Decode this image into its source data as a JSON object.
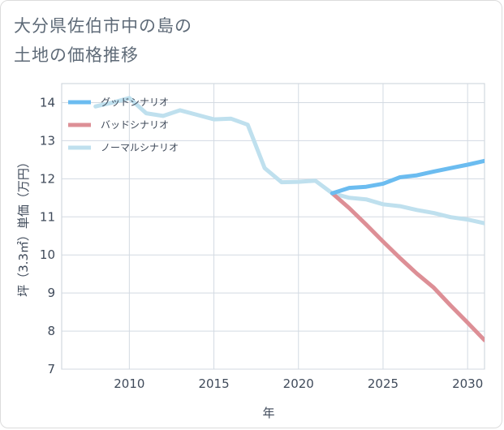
{
  "title": {
    "line1": "大分県佐伯市中の島の",
    "line2": "土地の価格推移"
  },
  "chart_data": {
    "type": "line",
    "xlabel": "年",
    "ylabel": "坪（3.3㎡）単価（万円）",
    "xlim": [
      2006,
      2031
    ],
    "ylim": [
      7,
      14.5
    ],
    "x_ticks": [
      "2010",
      "2015",
      "2020",
      "2025",
      "2030"
    ],
    "y_ticks": [
      "7",
      "8",
      "9",
      "10",
      "11",
      "12",
      "13",
      "14"
    ],
    "grid": true,
    "legend_position": "top-left",
    "series": [
      {
        "name": "グッドシナリオ",
        "color": "#6bbcf0",
        "x": [
          2022,
          2023,
          2024,
          2025,
          2026,
          2027,
          2028,
          2029,
          2030,
          2031
        ],
        "y": [
          11.62,
          11.76,
          11.79,
          11.87,
          12.04,
          12.09,
          12.19,
          12.28,
          12.37,
          12.47
        ]
      },
      {
        "name": "バッドシナリオ",
        "color": "#dd8f96",
        "x": [
          2022,
          2023,
          2024,
          2025,
          2026,
          2027,
          2028,
          2029,
          2030,
          2031
        ],
        "y": [
          11.62,
          11.23,
          10.8,
          10.35,
          9.92,
          9.51,
          9.14,
          8.67,
          8.22,
          7.76
        ]
      },
      {
        "name": "ノーマルシナリオ",
        "color": "#bfe0ee",
        "x": [
          2008,
          2009,
          2010,
          2011,
          2012,
          2013,
          2014,
          2015,
          2016,
          2017,
          2018,
          2019,
          2020,
          2021,
          2022,
          2023,
          2024,
          2025,
          2026,
          2027,
          2028,
          2029,
          2030,
          2031
        ],
        "y": [
          13.9,
          14.0,
          14.12,
          13.72,
          13.65,
          13.8,
          13.68,
          13.56,
          13.58,
          13.42,
          12.28,
          11.91,
          11.92,
          11.95,
          11.62,
          11.5,
          11.46,
          11.33,
          11.28,
          11.18,
          11.1,
          10.99,
          10.93,
          10.83
        ]
      }
    ]
  }
}
